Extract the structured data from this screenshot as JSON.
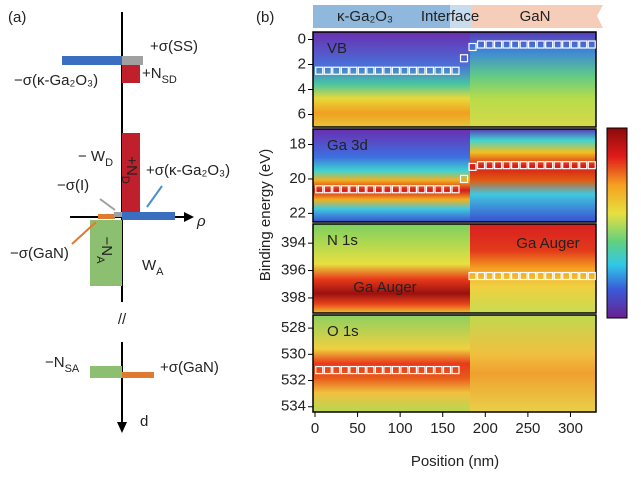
{
  "panel_a": {
    "label": "(a)",
    "ss": "+σ(SS)",
    "sigma_kappa_neg": "−σ(κ-Ga₂O₃)",
    "nsd": {
      "text": "+N",
      "sub": "SD"
    },
    "wd": {
      "text": "− W",
      "sub": "D"
    },
    "nd": {
      "text": "+N",
      "sub": "D"
    },
    "sigma_kappa_pos": "+σ(κ-Ga₂O₃)",
    "sigma_i": "−σ(I)",
    "rho": "ρ",
    "sigma_gan_neg": "−σ(GaN)",
    "na": {
      "text": "−N",
      "sub": "A"
    },
    "wa": {
      "text": "W",
      "sub": "A"
    },
    "break": "//",
    "nsa": {
      "text": "−N",
      "sub": "SA"
    },
    "sigma_gan_pos": "+σ(GaN)",
    "d": "d"
  },
  "chart_data": [
    {
      "type": "heatmap",
      "panel_label": "(b)",
      "label": "VB",
      "y_label": "Binding energy (eV)",
      "regions": [
        "κ-Ga₂O₃",
        "Interface",
        "GaN"
      ],
      "y_inverted": true,
      "xlim": [
        0,
        330
      ],
      "ylim": [
        -0.6,
        7
      ],
      "yticks": [
        0,
        2,
        4,
        6
      ],
      "x": [
        5,
        15,
        25,
        35,
        45,
        55,
        65,
        75,
        85,
        95,
        105,
        115,
        125,
        135,
        145,
        155,
        165,
        175,
        185,
        195,
        205,
        215,
        225,
        235,
        245,
        255,
        265,
        275,
        285,
        295,
        305,
        315,
        325
      ],
      "values": [
        2.5,
        2.5,
        2.5,
        2.5,
        2.5,
        2.5,
        2.5,
        2.5,
        2.5,
        2.5,
        2.5,
        2.5,
        2.5,
        2.5,
        2.5,
        2.5,
        2.5,
        1.5,
        0.6,
        0.4,
        0.4,
        0.4,
        0.4,
        0.4,
        0.4,
        0.4,
        0.4,
        0.4,
        0.4,
        0.4,
        0.4,
        0.4,
        0.4
      ]
    },
    {
      "type": "heatmap",
      "label": "Ga 3d",
      "y_inverted": true,
      "xlim": [
        0,
        330
      ],
      "ylim": [
        17.1,
        22.5
      ],
      "yticks": [
        18,
        20,
        22
      ],
      "x": [
        5,
        15,
        25,
        35,
        45,
        55,
        65,
        75,
        85,
        95,
        105,
        115,
        125,
        135,
        145,
        155,
        165,
        175,
        185,
        195,
        205,
        215,
        225,
        235,
        245,
        255,
        265,
        275,
        285,
        295,
        305,
        315,
        325
      ],
      "values": [
        20.6,
        20.6,
        20.6,
        20.6,
        20.6,
        20.6,
        20.6,
        20.6,
        20.6,
        20.6,
        20.6,
        20.6,
        20.6,
        20.6,
        20.6,
        20.6,
        20.6,
        20.0,
        19.3,
        19.2,
        19.2,
        19.2,
        19.2,
        19.2,
        19.2,
        19.2,
        19.2,
        19.2,
        19.2,
        19.2,
        19.2,
        19.2,
        19.2
      ]
    },
    {
      "type": "heatmap",
      "label": "N 1s",
      "annotations": [
        "Ga Auger",
        "Ga Auger"
      ],
      "y_inverted": true,
      "xlim": [
        0,
        330
      ],
      "ylim": [
        392.6,
        399.1
      ],
      "yticks": [
        394,
        396,
        398
      ],
      "x": [
        5,
        15,
        25,
        35,
        45,
        55,
        65,
        75,
        85,
        95,
        105,
        115,
        125,
        135,
        145,
        155,
        165,
        175,
        185,
        195,
        205,
        215,
        225,
        235,
        245,
        255,
        265,
        275,
        285,
        295,
        305,
        315,
        325
      ],
      "values": [
        null,
        null,
        null,
        null,
        null,
        null,
        null,
        null,
        null,
        null,
        null,
        null,
        null,
        null,
        null,
        null,
        null,
        null,
        396.4,
        396.4,
        396.4,
        396.4,
        396.4,
        396.4,
        396.4,
        396.4,
        396.4,
        396.4,
        396.4,
        396.4,
        396.4,
        396.4,
        396.4
      ]
    },
    {
      "type": "heatmap",
      "label": "O 1s",
      "x_label": "Position (nm)",
      "y_inverted": true,
      "xlim": [
        0,
        330
      ],
      "xticks": [
        0,
        50,
        100,
        150,
        200,
        250,
        300
      ],
      "ylim": [
        527,
        534.4
      ],
      "yticks": [
        528,
        530,
        532,
        534
      ],
      "x": [
        5,
        15,
        25,
        35,
        45,
        55,
        65,
        75,
        85,
        95,
        105,
        115,
        125,
        135,
        145,
        155,
        165,
        175,
        185,
        195,
        205,
        215,
        225,
        235,
        245,
        255,
        265,
        275,
        285,
        295,
        305,
        315,
        325
      ],
      "values": [
        531.2,
        531.2,
        531.2,
        531.2,
        531.2,
        531.2,
        531.2,
        531.2,
        531.2,
        531.2,
        531.2,
        531.2,
        531.2,
        531.2,
        531.2,
        531.2,
        531.2,
        null,
        null,
        null,
        null,
        null,
        null,
        null,
        null,
        null,
        null,
        null,
        null,
        null,
        null,
        null,
        null
      ]
    }
  ]
}
